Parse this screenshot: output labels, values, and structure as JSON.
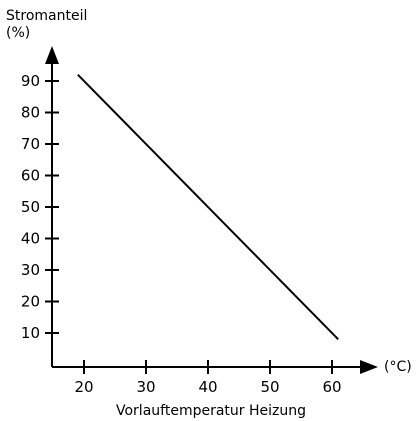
{
  "chart_data": {
    "type": "line",
    "title": "",
    "ylabel": "Stromanteil",
    "ylabel_unit": "(%)",
    "xlabel": "Vorlauftemperatur Heizung",
    "xlabel_unit": "(°C)",
    "x_ticks": [
      20,
      30,
      40,
      50,
      60
    ],
    "y_ticks": [
      10,
      20,
      30,
      40,
      50,
      60,
      70,
      80,
      90
    ],
    "xlim": [
      15,
      63
    ],
    "ylim": [
      2,
      97
    ],
    "grid": false,
    "series": [
      {
        "x": [
          19,
          61
        ],
        "y": [
          92,
          8
        ]
      }
    ],
    "colors": {
      "line": "#000000",
      "axis": "#000000"
    }
  }
}
